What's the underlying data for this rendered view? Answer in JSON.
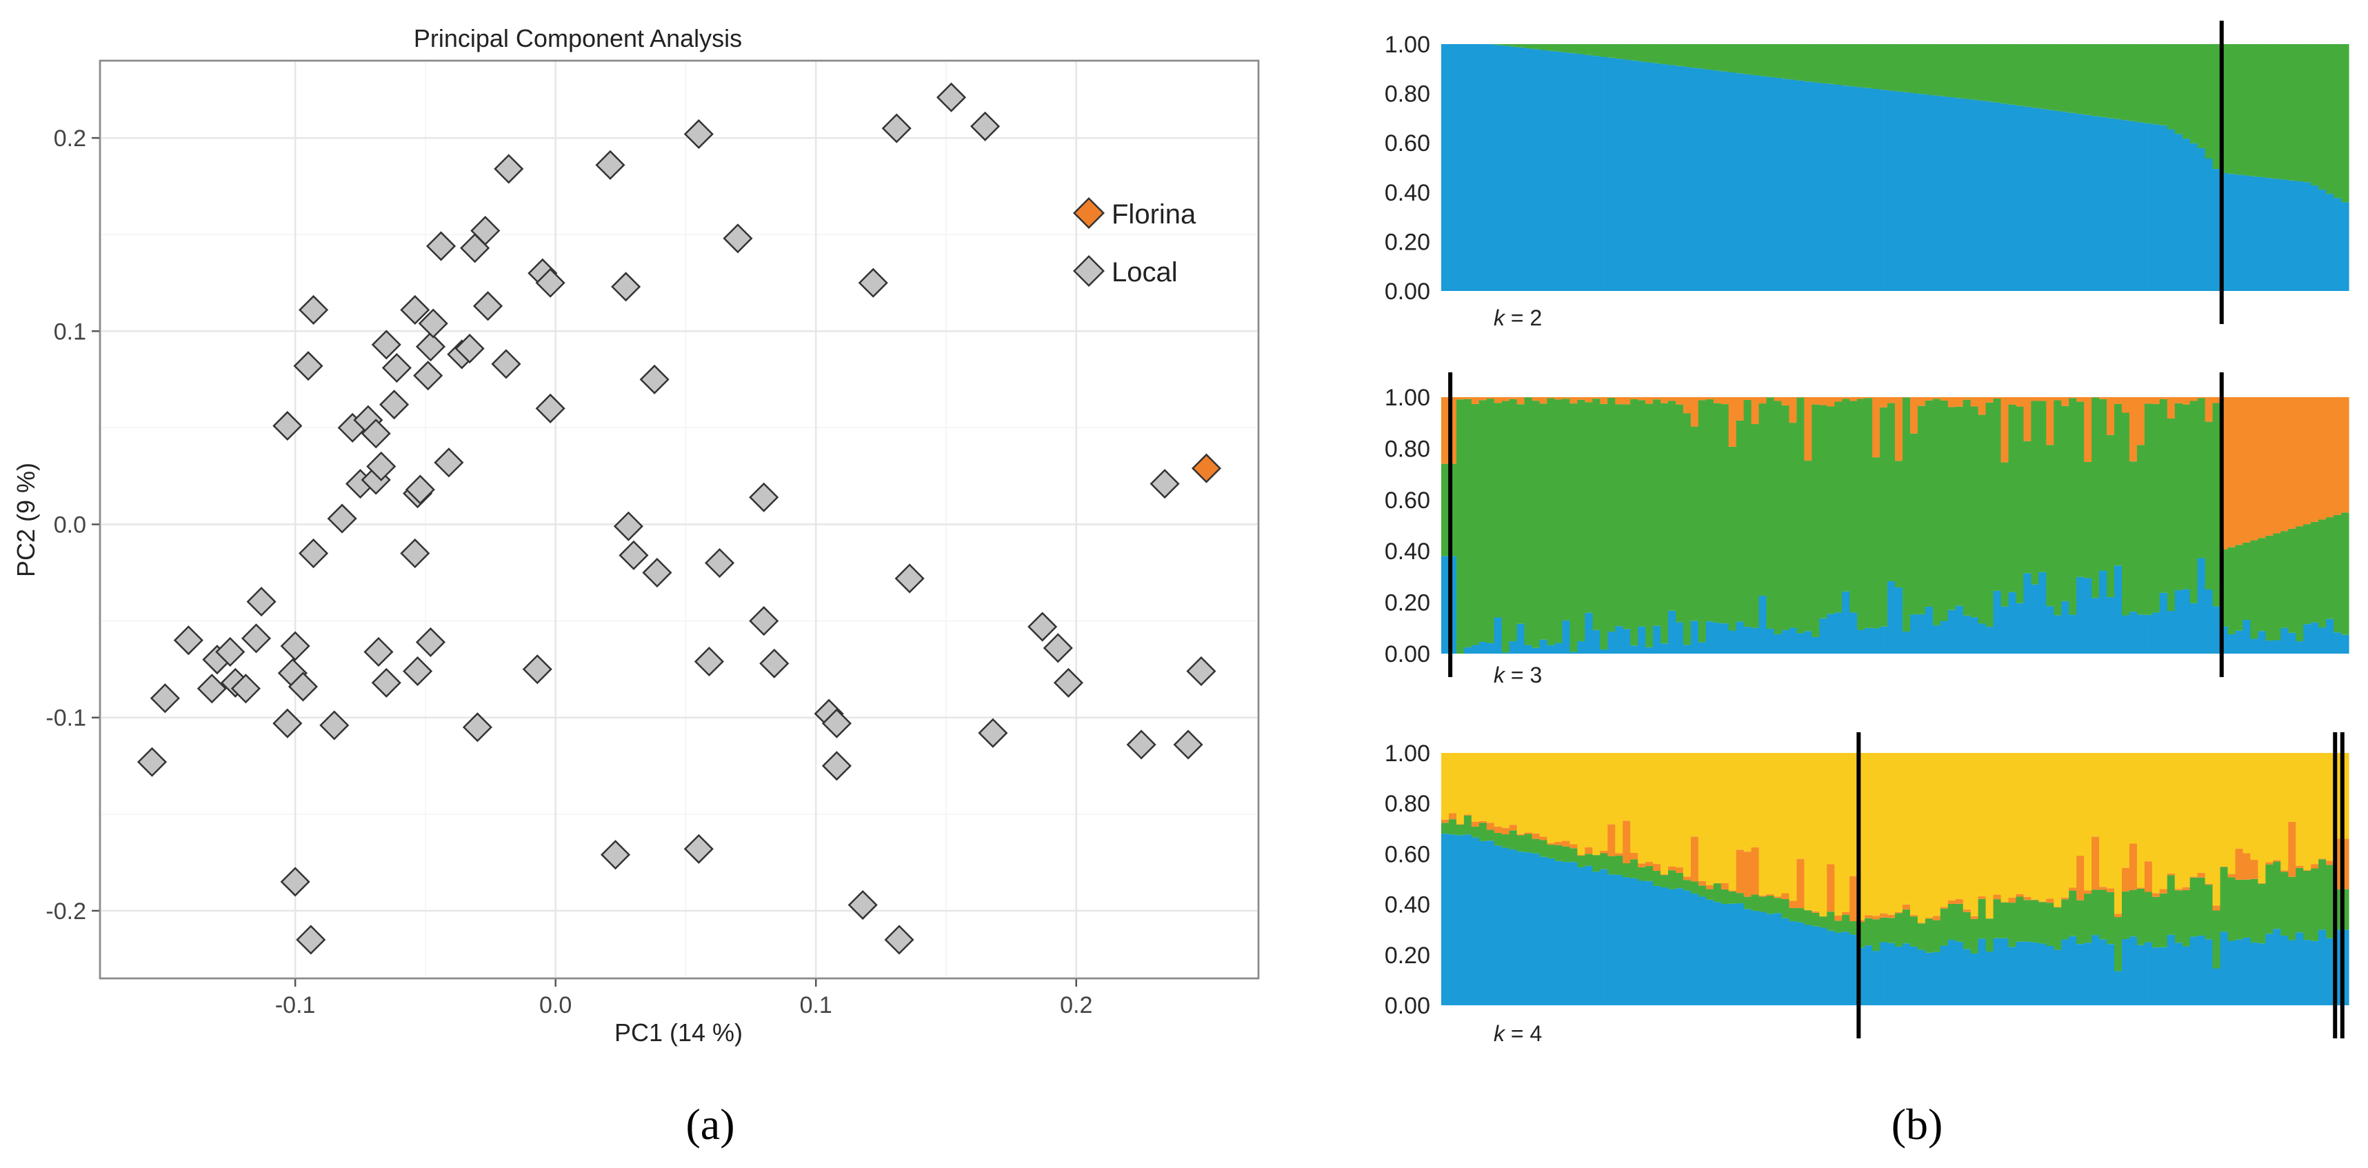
{
  "panel_labels": {
    "a": "(a)",
    "b": "(b)"
  },
  "colors": {
    "florina": "#F07F2A",
    "local": "#C4C4C4",
    "marker_stroke": "#333333",
    "blue": "#1B9BD7",
    "green": "#45AC3C",
    "orange": "#F68B2A",
    "yellow": "#FACB1F",
    "grid": "#EBEBEB",
    "panel_border": "#8A8A8A"
  },
  "chart_data": [
    {
      "type": "scatter",
      "title": "Principal Component Analysis",
      "xlabel": "PC1 (14 %)",
      "ylabel": "PC2 (9 %)",
      "xlim": [
        -0.175,
        0.27
      ],
      "ylim": [
        -0.235,
        0.24
      ],
      "xticks": [
        -0.1,
        0.0,
        0.1,
        0.2
      ],
      "xtick_labels": [
        "-0.1",
        "0.0",
        "0.1",
        "0.2"
      ],
      "yticks": [
        -0.2,
        -0.1,
        0.0,
        0.1,
        0.2
      ],
      "ytick_labels": [
        "-0.2",
        "-0.1",
        "0.0",
        "0.1",
        "0.2"
      ],
      "grid": true,
      "legend": {
        "position": "right",
        "entries": [
          "Florina",
          "Local"
        ]
      },
      "series": [
        {
          "name": "Florina",
          "color": "#F07F2A",
          "points": [
            [
              0.25,
              0.029
            ]
          ]
        },
        {
          "name": "Local",
          "color": "#C4C4C4",
          "points": [
            [
              -0.155,
              -0.123
            ],
            [
              -0.15,
              -0.09
            ],
            [
              -0.141,
              -0.06
            ],
            [
              -0.132,
              -0.085
            ],
            [
              -0.13,
              -0.07
            ],
            [
              -0.125,
              -0.066
            ],
            [
              -0.123,
              -0.082
            ],
            [
              -0.119,
              -0.085
            ],
            [
              -0.115,
              -0.059
            ],
            [
              -0.113,
              -0.04
            ],
            [
              -0.103,
              0.051
            ],
            [
              -0.103,
              -0.103
            ],
            [
              -0.101,
              -0.077
            ],
            [
              -0.1,
              -0.063
            ],
            [
              -0.1,
              -0.185
            ],
            [
              -0.097,
              -0.084
            ],
            [
              -0.095,
              0.082
            ],
            [
              -0.094,
              -0.215
            ],
            [
              -0.093,
              0.111
            ],
            [
              -0.093,
              -0.015
            ],
            [
              -0.085,
              -0.104
            ],
            [
              -0.082,
              0.003
            ],
            [
              -0.078,
              0.05
            ],
            [
              -0.075,
              0.021
            ],
            [
              -0.072,
              0.054
            ],
            [
              -0.069,
              0.047
            ],
            [
              -0.069,
              0.023
            ],
            [
              -0.067,
              0.03
            ],
            [
              -0.068,
              -0.066
            ],
            [
              -0.065,
              0.093
            ],
            [
              -0.065,
              -0.082
            ],
            [
              -0.062,
              0.062
            ],
            [
              -0.061,
              0.081
            ],
            [
              -0.054,
              0.111
            ],
            [
              -0.053,
              0.016
            ],
            [
              -0.054,
              -0.015
            ],
            [
              -0.052,
              0.018
            ],
            [
              -0.053,
              -0.076
            ],
            [
              -0.048,
              0.092
            ],
            [
              -0.049,
              0.077
            ],
            [
              -0.047,
              0.104
            ],
            [
              -0.048,
              -0.061
            ],
            [
              -0.044,
              0.144
            ],
            [
              -0.041,
              0.032
            ],
            [
              -0.036,
              0.088
            ],
            [
              -0.033,
              0.091
            ],
            [
              -0.031,
              0.143
            ],
            [
              -0.03,
              -0.105
            ],
            [
              -0.027,
              0.152
            ],
            [
              -0.026,
              0.113
            ],
            [
              -0.018,
              0.184
            ],
            [
              -0.019,
              0.083
            ],
            [
              -0.007,
              -0.075
            ],
            [
              -0.005,
              0.13
            ],
            [
              -0.002,
              0.125
            ],
            [
              -0.002,
              0.06
            ],
            [
              0.021,
              0.186
            ],
            [
              0.023,
              -0.171
            ],
            [
              0.027,
              0.123
            ],
            [
              0.028,
              -0.001
            ],
            [
              0.03,
              -0.016
            ],
            [
              0.038,
              0.075
            ],
            [
              0.039,
              -0.025
            ],
            [
              0.055,
              0.202
            ],
            [
              0.055,
              -0.168
            ],
            [
              0.059,
              -0.071
            ],
            [
              0.063,
              -0.02
            ],
            [
              0.07,
              0.148
            ],
            [
              0.08,
              0.014
            ],
            [
              0.08,
              -0.05
            ],
            [
              0.084,
              -0.072
            ],
            [
              0.105,
              -0.098
            ],
            [
              0.108,
              -0.103
            ],
            [
              0.108,
              -0.125
            ],
            [
              0.118,
              -0.197
            ],
            [
              0.122,
              0.125
            ],
            [
              0.131,
              0.205
            ],
            [
              0.132,
              -0.215
            ],
            [
              0.136,
              -0.028
            ],
            [
              0.152,
              0.221
            ],
            [
              0.165,
              0.206
            ],
            [
              0.168,
              -0.108
            ],
            [
              0.187,
              -0.053
            ],
            [
              0.193,
              -0.064
            ],
            [
              0.197,
              -0.082
            ],
            [
              0.225,
              -0.114
            ],
            [
              0.234,
              0.021
            ],
            [
              0.243,
              -0.114
            ],
            [
              0.248,
              -0.076
            ]
          ]
        }
      ]
    },
    {
      "type": "stacked-bar",
      "title": "k = 2",
      "k_prefix": "k",
      "k_suffix": " = 2",
      "ylim": [
        0,
        1
      ],
      "yticks": [
        0,
        0.2,
        0.4,
        0.6,
        0.8,
        1.0
      ],
      "ytick_labels": [
        "0.00",
        "0.20",
        "0.40",
        "0.60",
        "0.80",
        "1.00"
      ],
      "n_individuals": 120,
      "components": [
        {
          "name": "blue",
          "color": "#1B9BD7"
        },
        {
          "name": "green",
          "color": "#45AC3C"
        }
      ],
      "boundary_positions": [
        0.86
      ],
      "profile": {
        "blue_breakpoints": [
          [
            0,
            1.0
          ],
          [
            0.05,
            1.0
          ],
          [
            0.15,
            0.96
          ],
          [
            0.4,
            0.85
          ],
          [
            0.6,
            0.77
          ],
          [
            0.8,
            0.67
          ],
          [
            0.84,
            0.58
          ],
          [
            0.86,
            0.48
          ],
          [
            0.96,
            0.44
          ],
          [
            1.0,
            0.36
          ]
        ]
      }
    },
    {
      "type": "stacked-bar",
      "title": "k = 3",
      "k_prefix": "k",
      "k_suffix": " = 3",
      "ylim": [
        0,
        1
      ],
      "yticks": [
        0,
        0.2,
        0.4,
        0.6,
        0.8,
        1.0
      ],
      "ytick_labels": [
        "0.00",
        "0.20",
        "0.40",
        "0.60",
        "0.80",
        "1.00"
      ],
      "n_individuals": 120,
      "components": [
        {
          "name": "blue",
          "color": "#1B9BD7"
        },
        {
          "name": "green",
          "color": "#45AC3C"
        },
        {
          "name": "orange",
          "color": "#F68B2A"
        }
      ],
      "boundary_positions": [
        0.01,
        0.86
      ]
    },
    {
      "type": "stacked-bar",
      "title": "k = 4",
      "k_prefix": "k",
      "k_suffix": " = 4",
      "ylim": [
        0,
        1
      ],
      "yticks": [
        0,
        0.2,
        0.4,
        0.6,
        0.8,
        1.0
      ],
      "ytick_labels": [
        "0.00",
        "0.20",
        "0.40",
        "0.60",
        "0.80",
        "1.00"
      ],
      "n_individuals": 120,
      "components": [
        {
          "name": "blue",
          "color": "#1B9BD7"
        },
        {
          "name": "green",
          "color": "#45AC3C"
        },
        {
          "name": "orange",
          "color": "#F68B2A"
        },
        {
          "name": "yellow",
          "color": "#FACB1F"
        }
      ],
      "boundary_positions": [
        0.46,
        0.985,
        0.993
      ]
    }
  ]
}
